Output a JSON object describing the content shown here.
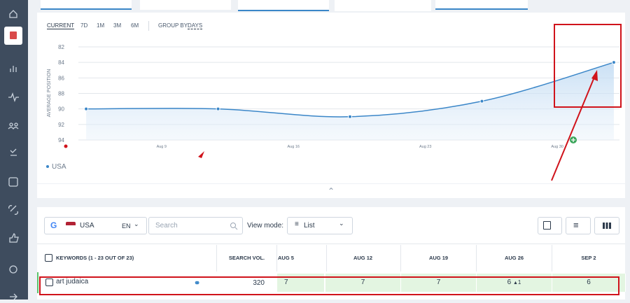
{
  "period_tabs": [
    "CURRENT",
    "7D",
    "1M",
    "3M",
    "6M"
  ],
  "group_by": {
    "label": "GROUP BY:",
    "value": "DAYS"
  },
  "chart_data": {
    "type": "line",
    "y_label": "AVERAGE POSITION",
    "x": [
      5,
      12,
      19,
      26,
      33
    ],
    "xlim": [
      4.7,
      33.3
    ],
    "xticks": [
      {
        "value": 9,
        "label": "Aug 9"
      },
      {
        "value": 16,
        "label": "Aug 16"
      },
      {
        "value": 23,
        "label": "Aug 23"
      },
      {
        "value": 30,
        "label": "Aug 30"
      }
    ],
    "ylim": [
      82,
      94
    ],
    "y_inverted": true,
    "yticks": [
      82,
      84,
      86,
      88,
      90,
      92,
      94
    ],
    "grid": true,
    "series": [
      {
        "name": "USA",
        "color": "#3a86c8",
        "values": [
          90,
          90,
          91,
          89,
          84
        ]
      }
    ]
  },
  "filters": {
    "country": "USA",
    "language": "EN",
    "search_placeholder": "Search",
    "view_mode_label": "View mode:",
    "view_mode": "List"
  },
  "table": {
    "columns": [
      "KEYWORDS (1 - 23 OUT OF 23)",
      "SEARCH VOL.",
      "AUG 5",
      "AUG 12",
      "AUG 19",
      "AUG 26",
      "SEP 2"
    ],
    "rows": [
      {
        "keyword": "art judaica",
        "search_volume": 320,
        "positions": [
          7,
          7,
          7,
          6,
          6
        ],
        "position_changes": [
          null,
          null,
          null,
          1,
          null
        ]
      }
    ]
  }
}
